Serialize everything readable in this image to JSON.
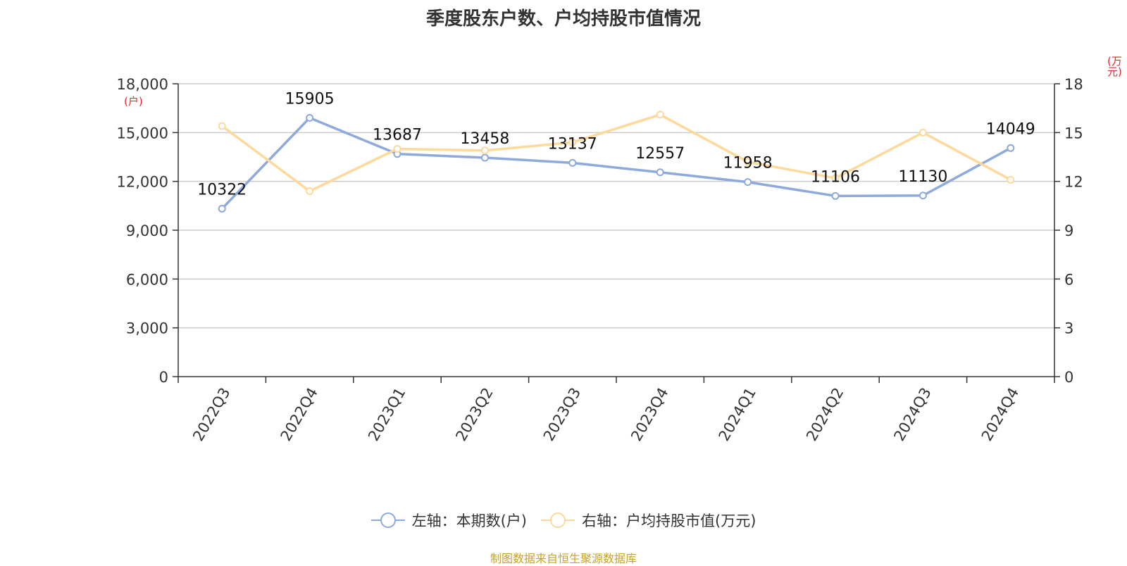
{
  "chart_data": {
    "type": "line",
    "title": "季度股东户数、户均持股市值情况",
    "categories": [
      "2022Q3",
      "2022Q4",
      "2023Q1",
      "2023Q2",
      "2023Q3",
      "2023Q4",
      "2024Q1",
      "2024Q2",
      "2024Q3",
      "2024Q4"
    ],
    "series": [
      {
        "name": "左轴：本期数(户)",
        "axis": "left",
        "color": "#8eaadb",
        "values": [
          10322,
          15905,
          13687,
          13458,
          13137,
          12557,
          11958,
          11106,
          11130,
          14049
        ],
        "labels": [
          "10322",
          "15905",
          "13687",
          "13458",
          "13137",
          "12557",
          "11958",
          "11106",
          "11130",
          "14049"
        ]
      },
      {
        "name": "右轴：户均持股市值(万元)",
        "axis": "right",
        "color": "#fdd99b",
        "values": [
          15.4,
          11.4,
          14.0,
          13.9,
          14.4,
          16.1,
          13.2,
          12.2,
          15.0,
          12.1
        ]
      }
    ],
    "left_axis": {
      "unit": "(户)",
      "ylim": [
        0,
        18000
      ],
      "ticks": [
        "0",
        "3,000",
        "6,000",
        "9,000",
        "12,000",
        "15,000",
        "18,000"
      ]
    },
    "right_axis": {
      "unit": "(万元)",
      "ylim": [
        0,
        18
      ],
      "ticks": [
        "0",
        "3",
        "6",
        "9",
        "12",
        "15",
        "18"
      ]
    },
    "grid": true,
    "legend_position": "bottom"
  },
  "source_text": "制图数据来自恒生聚源数据库",
  "colors": {
    "unit_text": "#e8262a",
    "source_text": "#c9a227"
  }
}
